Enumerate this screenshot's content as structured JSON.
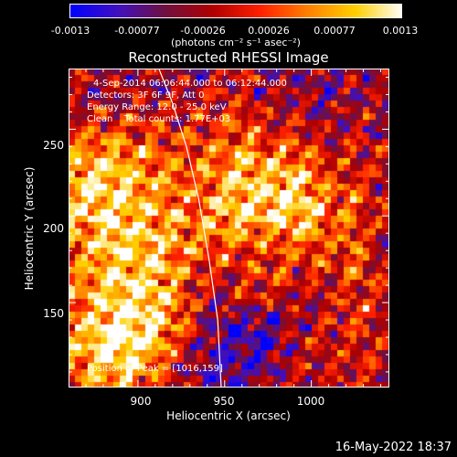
{
  "colorbar": {
    "tick_labels": [
      "-0.0013",
      "-0.00077",
      "-0.00026",
      "0.00026",
      "0.00077",
      "0.0013"
    ],
    "units": "(photons cm⁻² s⁻¹ asec⁻²)",
    "colors": [
      "#0000ff",
      "#4010c0",
      "#701040",
      "#b00000",
      "#ff2000",
      "#ff8000",
      "#ffd000",
      "#ffffff"
    ]
  },
  "chart_data": {
    "type": "heatmap",
    "title": "Reconstructed RHESSI Image",
    "xlabel": "Heliocentric X (arcsec)",
    "ylabel": "Heliocentric Y (arcsec)",
    "xlim": [
      860,
      1045
    ],
    "ylim": [
      101,
      285
    ],
    "x_ticks": [
      900,
      950,
      1000
    ],
    "y_ticks": [
      150,
      200,
      250
    ],
    "x_tick_labels": [
      "900",
      "950",
      "1000"
    ],
    "y_tick_labels": [
      "150",
      "200",
      "250"
    ],
    "zlim": [
      -0.0013,
      0.0013
    ],
    "annotations": {
      "time": "4-Sep-2014 06:06:44.000 to 06:12:44.000",
      "detectors": "Detectors: 3F 6F 9F, Att 0",
      "energy": "Energy Range: 12.0 - 25.0 keV",
      "clean": "Clean    Total counts: 1.77E+03",
      "peak": "Position of Peak = [1016,159]"
    },
    "limb_curve": [
      [
        912,
        285
      ],
      [
        920,
        265
      ],
      [
        928,
        240
      ],
      [
        935,
        210
      ],
      [
        941,
        175
      ],
      [
        946,
        140
      ],
      [
        948,
        101
      ]
    ]
  },
  "footer": {
    "date": "16-May-2022 18:37"
  }
}
